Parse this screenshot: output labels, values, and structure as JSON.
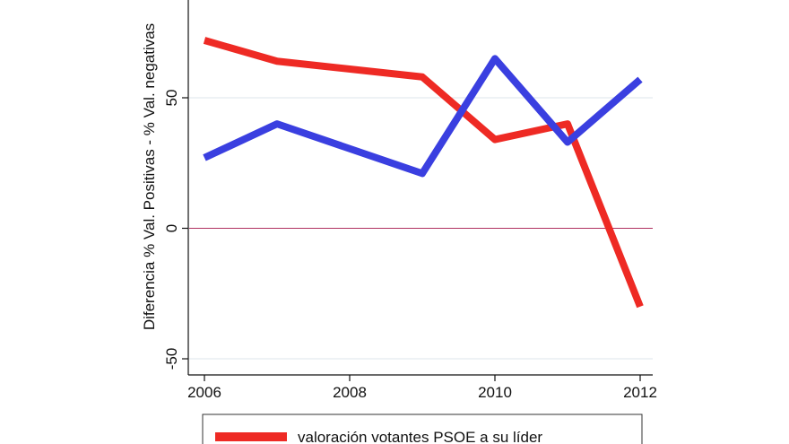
{
  "chart_data": {
    "type": "line",
    "title": "",
    "xlabel": "",
    "ylabel": "Diferencia % Val. Positivas - % Val. negativas",
    "x": [
      2006,
      2007,
      2009,
      2010,
      2011,
      2012
    ],
    "xticks": [
      "2006",
      "2008",
      "2010",
      "2012"
    ],
    "yticks": [
      "-50",
      "0",
      "50"
    ],
    "xlim": [
      2006,
      2012
    ],
    "ylim": [
      -50,
      80
    ],
    "reference_line": {
      "y": 0,
      "color": "#b03060"
    },
    "grid": true,
    "legend_position": "bottom",
    "series": [
      {
        "name": "valoración votantes PSOE a su líder",
        "color": "#ee2a24",
        "values": [
          72,
          64,
          58,
          34,
          40,
          -30
        ]
      },
      {
        "color": "#3a3fe0",
        "values": [
          27,
          40,
          21,
          65,
          33,
          57
        ]
      }
    ]
  }
}
